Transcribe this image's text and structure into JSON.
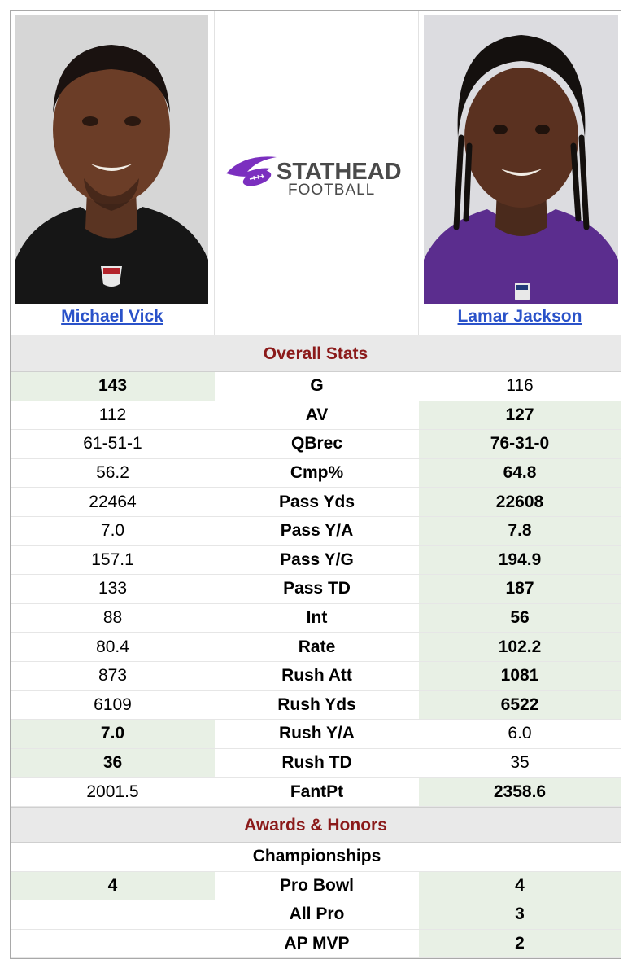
{
  "players": {
    "left": {
      "name": "Michael Vick"
    },
    "right": {
      "name": "Lamar Jackson"
    }
  },
  "logo": {
    "word1": "STATHEAD",
    "word2": "FOOTBALL",
    "icon": "football-logo-icon"
  },
  "sections": {
    "overall": "Overall Stats",
    "awards": "Awards & Honors"
  },
  "stats": [
    {
      "label": "G",
      "left": "143",
      "right": "116",
      "winner": "left"
    },
    {
      "label": "AV",
      "left": "112",
      "right": "127",
      "winner": "right"
    },
    {
      "label": "QBrec",
      "left": "61-51-1",
      "right": "76-31-0",
      "winner": "right"
    },
    {
      "label": "Cmp%",
      "left": "56.2",
      "right": "64.8",
      "winner": "right"
    },
    {
      "label": "Pass Yds",
      "left": "22464",
      "right": "22608",
      "winner": "right"
    },
    {
      "label": "Pass Y/A",
      "left": "7.0",
      "right": "7.8",
      "winner": "right"
    },
    {
      "label": "Pass Y/G",
      "left": "157.1",
      "right": "194.9",
      "winner": "right"
    },
    {
      "label": "Pass TD",
      "left": "133",
      "right": "187",
      "winner": "right"
    },
    {
      "label": "Int",
      "left": "88",
      "right": "56",
      "winner": "right"
    },
    {
      "label": "Rate",
      "left": "80.4",
      "right": "102.2",
      "winner": "right"
    },
    {
      "label": "Rush Att",
      "left": "873",
      "right": "1081",
      "winner": "right"
    },
    {
      "label": "Rush Yds",
      "left": "6109",
      "right": "6522",
      "winner": "right"
    },
    {
      "label": "Rush Y/A",
      "left": "7.0",
      "right": "6.0",
      "winner": "left"
    },
    {
      "label": "Rush TD",
      "left": "36",
      "right": "35",
      "winner": "left"
    },
    {
      "label": "FantPt",
      "left": "2001.5",
      "right": "2358.6",
      "winner": "right"
    }
  ],
  "honors": [
    {
      "label": "Championships",
      "left": "",
      "right": "",
      "winner": "none"
    },
    {
      "label": "Pro Bowl",
      "left": "4",
      "right": "4",
      "winner": "both"
    },
    {
      "label": "All Pro",
      "left": "",
      "right": "3",
      "winner": "right"
    },
    {
      "label": "AP MVP",
      "left": "",
      "right": "2",
      "winner": "right"
    }
  ],
  "colors": {
    "accent_red": "#8b1a1a",
    "link_blue": "#2a52c9",
    "winner_bg": "#e8f0e5",
    "logo_purple": "#7b2fbf",
    "logo_gray": "#4a4a4a"
  }
}
